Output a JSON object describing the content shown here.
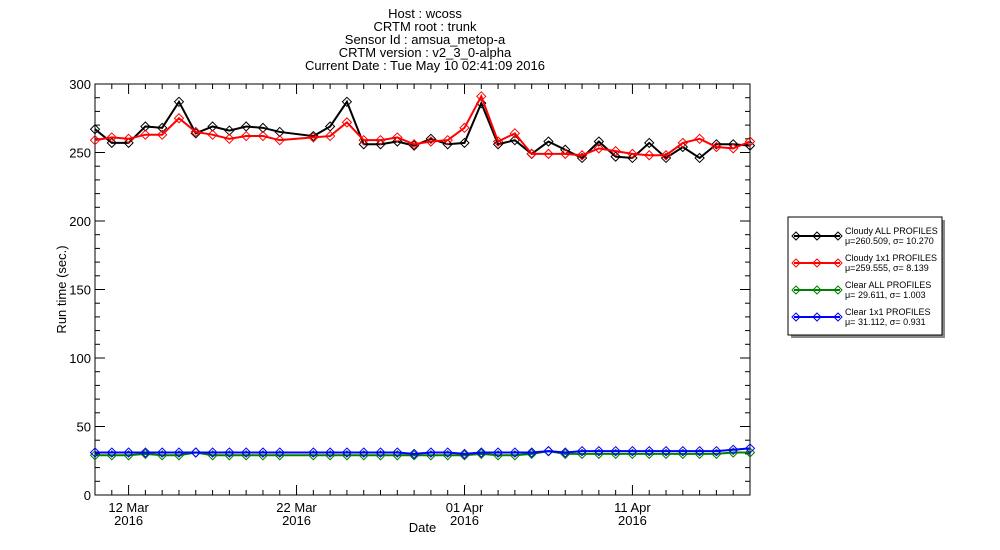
{
  "title_lines": [
    "Host : wcoss",
    "CRTM root : trunk",
    "Sensor Id : amsua_metop-a",
    "CRTM version : v2_3_0-alpha",
    "Current Date : Tue May 10 02:41:09 2016"
  ],
  "chart_data": {
    "type": "line",
    "xlabel": "Date",
    "ylabel": "Run time (sec.)",
    "xlim": [
      "2016-03-10",
      "2016-04-18"
    ],
    "ylim": [
      0,
      300
    ],
    "yticks": [
      0,
      50,
      100,
      150,
      200,
      250,
      300
    ],
    "xticks": [
      {
        "date": "2016-03-12",
        "label": "12 Mar",
        "year": "2016"
      },
      {
        "date": "2016-03-22",
        "label": "22 Mar",
        "year": "2016"
      },
      {
        "date": "2016-04-01",
        "label": "01 Apr",
        "year": "2016"
      },
      {
        "date": "2016-04-11",
        "label": "11 Apr",
        "year": "2016"
      }
    ],
    "legend_position": "right",
    "x": [
      "2016-03-10",
      "2016-03-11",
      "2016-03-12",
      "2016-03-13",
      "2016-03-14",
      "2016-03-15",
      "2016-03-16",
      "2016-03-17",
      "2016-03-18",
      "2016-03-19",
      "2016-03-20",
      "2016-03-21",
      "2016-03-23",
      "2016-03-24",
      "2016-03-25",
      "2016-03-26",
      "2016-03-27",
      "2016-03-28",
      "2016-03-29",
      "2016-03-30",
      "2016-03-31",
      "2016-04-01",
      "2016-04-02",
      "2016-04-03",
      "2016-04-04",
      "2016-04-05",
      "2016-04-06",
      "2016-04-07",
      "2016-04-08",
      "2016-04-09",
      "2016-04-10",
      "2016-04-11",
      "2016-04-12",
      "2016-04-13",
      "2016-04-14",
      "2016-04-15",
      "2016-04-16",
      "2016-04-17",
      "2016-04-18"
    ],
    "series": [
      {
        "name": "Cloudy ALL PROFILES",
        "color": "#000000",
        "stats": "μ=260.509, σ= 10.270",
        "values": [
          267,
          257,
          257,
          269,
          268,
          287,
          264,
          269,
          266,
          269,
          268,
          265,
          262,
          269,
          287,
          256,
          256,
          258,
          255,
          260,
          256,
          257,
          286,
          256,
          259,
          249,
          258,
          252,
          246,
          258,
          247,
          246,
          257,
          246,
          254,
          246,
          256,
          256,
          255
        ]
      },
      {
        "name": "Cloudy 1x1 PROFILES",
        "color": "#ff0000",
        "stats": "μ=259.555, σ=  8.139",
        "values": [
          259,
          261,
          260,
          263,
          263,
          275,
          265,
          263,
          260,
          262,
          262,
          259,
          261,
          262,
          272,
          259,
          259,
          261,
          256,
          258,
          259,
          268,
          291,
          258,
          264,
          249,
          249,
          249,
          248,
          253,
          251,
          249,
          248,
          248,
          257,
          260,
          254,
          253,
          258
        ]
      },
      {
        "name": "Clear ALL PROFILES",
        "color": "#008000",
        "stats": "μ= 29.611, σ=  1.003",
        "values": [
          29,
          29,
          29,
          30,
          29,
          29,
          31,
          29,
          29,
          29,
          29,
          29,
          29,
          29,
          29,
          29,
          29,
          29,
          29,
          29,
          29,
          29,
          30,
          29,
          29,
          30,
          32,
          30,
          30,
          30,
          30,
          30,
          30,
          30,
          30,
          30,
          30,
          31,
          31
        ]
      },
      {
        "name": "Clear 1x1 PROFILES",
        "color": "#0000ff",
        "stats": "μ= 31.112, σ=  0.931",
        "values": [
          31,
          31,
          31,
          31,
          31,
          31,
          31,
          31,
          31,
          31,
          31,
          31,
          31,
          31,
          31,
          31,
          31,
          31,
          30,
          31,
          31,
          30,
          31,
          31,
          31,
          31,
          32,
          31,
          32,
          32,
          32,
          32,
          32,
          32,
          32,
          32,
          32,
          33,
          34
        ]
      }
    ]
  }
}
